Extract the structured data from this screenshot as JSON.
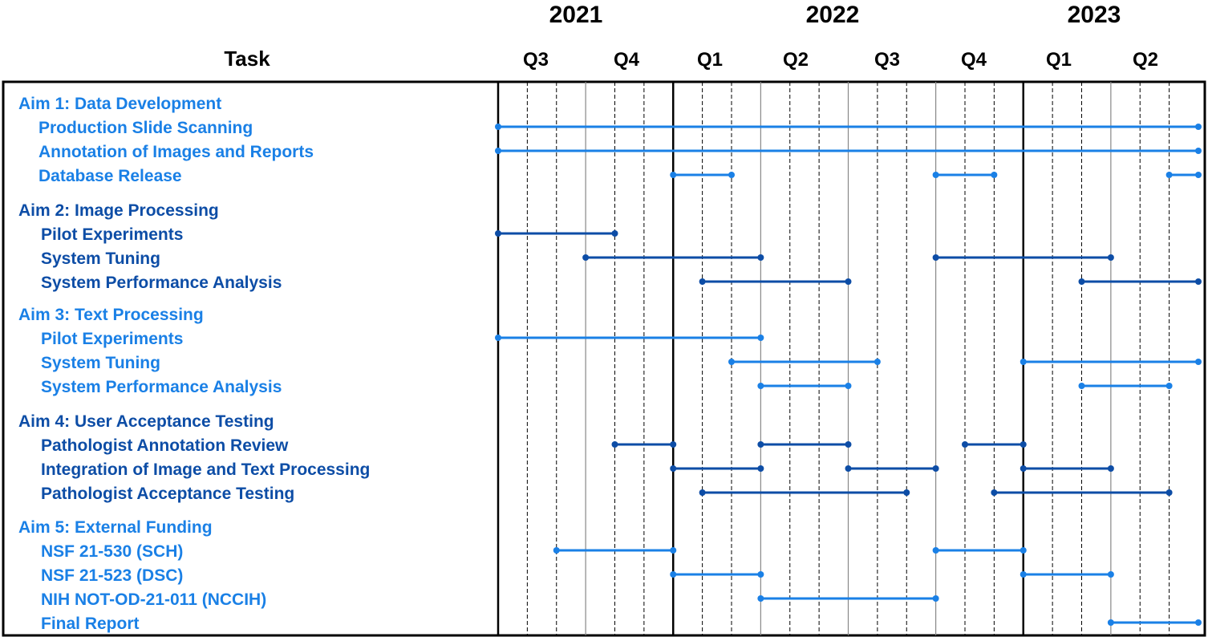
{
  "header": {
    "task_label": "Task",
    "years": [
      "2021",
      "2022",
      "2023"
    ],
    "quarters": [
      "Q3",
      "Q4",
      "Q1",
      "Q2",
      "Q3",
      "Q4",
      "Q1",
      "Q2"
    ]
  },
  "colors": {
    "light_blue": "#1a80e6",
    "dark_blue": "#0d4da6",
    "grid": "#000000"
  },
  "chart_data": {
    "type": "gantt",
    "time_range": [
      "2021-07",
      "2023-06"
    ],
    "unit": "month",
    "rows": [
      {
        "label": "Aim 1: Data Development",
        "kind": "aim",
        "color": "light",
        "bars": []
      },
      {
        "label": "Production Slide Scanning",
        "kind": "task",
        "color": "light",
        "bars": [
          [
            "2021-07",
            "2023-06"
          ]
        ]
      },
      {
        "label": "Annotation of Images and Reports",
        "kind": "task",
        "color": "light",
        "bars": [
          [
            "2021-07",
            "2023-06"
          ]
        ]
      },
      {
        "label": "Database Release",
        "kind": "task",
        "color": "light",
        "bars": [
          [
            "2022-01",
            "2022-02"
          ],
          [
            "2022-10",
            "2022-11"
          ],
          [
            "2023-06",
            "2023-06"
          ]
        ]
      },
      {
        "label": "Aim 2: Image Processing",
        "kind": "aim",
        "color": "dark",
        "bars": []
      },
      {
        "label": "Pilot Experiments",
        "kind": "task",
        "color": "dark",
        "bars": [
          [
            "2021-07",
            "2021-10"
          ]
        ]
      },
      {
        "label": "System Tuning",
        "kind": "task",
        "color": "dark",
        "bars": [
          [
            "2021-10",
            "2022-03"
          ],
          [
            "2022-10",
            "2023-03"
          ]
        ]
      },
      {
        "label": "System Performance Analysis",
        "kind": "task",
        "color": "dark",
        "bars": [
          [
            "2022-02",
            "2022-06"
          ],
          [
            "2023-03",
            "2023-06"
          ]
        ]
      },
      {
        "label": "Aim 3: Text Processing",
        "kind": "aim",
        "color": "light",
        "bars": []
      },
      {
        "label": "Pilot Experiments",
        "kind": "task",
        "color": "light",
        "bars": [
          [
            "2021-07",
            "2022-03"
          ]
        ]
      },
      {
        "label": "System Tuning",
        "kind": "task",
        "color": "light",
        "bars": [
          [
            "2022-03",
            "2022-07"
          ],
          [
            "2023-01",
            "2023-06"
          ]
        ]
      },
      {
        "label": "System Performance Analysis",
        "kind": "task",
        "color": "light",
        "bars": [
          [
            "2022-04",
            "2022-06"
          ],
          [
            "2023-03",
            "2023-05"
          ]
        ]
      },
      {
        "label": "Aim 4: User Acceptance Testing",
        "kind": "aim",
        "color": "dark",
        "bars": []
      },
      {
        "label": "Pathologist Annotation Review",
        "kind": "task",
        "color": "dark",
        "bars": [
          [
            "2021-11",
            "2021-12"
          ],
          [
            "2022-04",
            "2022-06"
          ],
          [
            "2022-11",
            "2022-12"
          ]
        ]
      },
      {
        "label": "Integration of Image and Text Processing",
        "kind": "task",
        "color": "dark",
        "bars": [
          [
            "2022-01",
            "2022-03"
          ],
          [
            "2022-07",
            "2022-09"
          ],
          [
            "2023-01",
            "2023-03"
          ]
        ]
      },
      {
        "label": "Pathologist Acceptance Testing",
        "kind": "task",
        "color": "dark",
        "bars": [
          [
            "2022-02",
            "2022-08"
          ],
          [
            "2022-12",
            "2023-05"
          ]
        ]
      },
      {
        "label": "Aim 5: External Funding",
        "kind": "aim",
        "color": "light",
        "bars": []
      },
      {
        "label": "NSF 21-530 (SCH)",
        "kind": "task",
        "color": "light",
        "bars": [
          [
            "2021-09",
            "2021-12"
          ],
          [
            "2022-10",
            "2022-12"
          ]
        ]
      },
      {
        "label": "NSF 21-523 (DSC)",
        "kind": "task",
        "color": "light",
        "bars": [
          [
            "2022-01",
            "2022-03"
          ],
          [
            "2023-01",
            "2023-03"
          ]
        ]
      },
      {
        "label": "NIH NOT-OD-21-011 (NCCIH)",
        "kind": "task",
        "color": "light",
        "bars": [
          [
            "2022-04",
            "2022-09"
          ]
        ]
      },
      {
        "label": "Final Report",
        "kind": "task",
        "color": "light",
        "bars": [
          [
            "2023-04",
            "2023-06"
          ]
        ]
      }
    ]
  }
}
